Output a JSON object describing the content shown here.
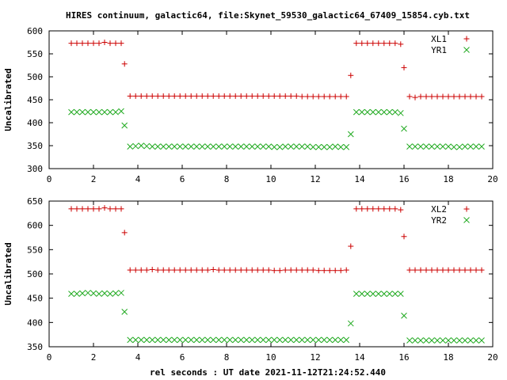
{
  "title": "HIRES continuum, galactic64, file:Skynet_59530_galactic64_67409_15854.cyb.txt",
  "xlabel": "rel seconds : UT date 2021-11-12T21:24:52.440",
  "colors": {
    "red_series": "#cc0000",
    "green_series": "#22aa22",
    "axis": "#000000"
  },
  "chart_data": [
    {
      "type": "scatter",
      "ylabel": "Uncalibrated",
      "xlim": [
        0,
        20
      ],
      "ylim": [
        300,
        600
      ],
      "xticks": [
        "0",
        "2",
        "4",
        "6",
        "8",
        "10",
        "12",
        "14",
        "16",
        "18",
        "20"
      ],
      "yticks": [
        "300",
        "350",
        "400",
        "450",
        "500",
        "550",
        "600"
      ],
      "legend_position": "top-right",
      "series": [
        {
          "name": "XL1",
          "marker": "plus",
          "color": "#cc0000",
          "x": [
            1.0,
            1.25,
            1.5,
            1.75,
            2.0,
            2.25,
            2.5,
            2.75,
            3.0,
            3.25,
            3.4,
            3.65,
            3.9,
            4.15,
            4.4,
            4.65,
            4.9,
            5.15,
            5.4,
            5.65,
            5.9,
            6.15,
            6.4,
            6.65,
            6.9,
            7.15,
            7.4,
            7.65,
            7.9,
            8.15,
            8.4,
            8.65,
            8.9,
            9.15,
            9.4,
            9.65,
            9.9,
            10.15,
            10.4,
            10.65,
            10.9,
            11.15,
            11.4,
            11.65,
            11.9,
            12.15,
            12.4,
            12.65,
            12.9,
            13.15,
            13.4,
            13.6,
            13.85,
            14.1,
            14.35,
            14.6,
            14.85,
            15.1,
            15.35,
            15.6,
            15.85,
            16.0,
            16.25,
            16.5,
            16.75,
            17.0,
            17.25,
            17.5,
            17.75,
            18.0,
            18.25,
            18.5,
            18.75,
            19.0,
            19.25,
            19.5
          ],
          "y": [
            573,
            573,
            573,
            573,
            573,
            573,
            575,
            573,
            573,
            573,
            528,
            458,
            458,
            458,
            458,
            458,
            458,
            458,
            458,
            458,
            458,
            458,
            458,
            458,
            458,
            458,
            458,
            458,
            458,
            458,
            458,
            458,
            458,
            458,
            458,
            458,
            458,
            458,
            458,
            458,
            458,
            458,
            457,
            457,
            457,
            457,
            457,
            457,
            457,
            457,
            457,
            503,
            573,
            573,
            573,
            573,
            573,
            573,
            573,
            573,
            571,
            520,
            457,
            455,
            457,
            457,
            457,
            457,
            457,
            457,
            457,
            457,
            457,
            457,
            457,
            457
          ]
        },
        {
          "name": "YR1",
          "marker": "cross",
          "color": "#22aa22",
          "x": [
            1.0,
            1.25,
            1.5,
            1.75,
            2.0,
            2.25,
            2.5,
            2.75,
            3.0,
            3.25,
            3.4,
            3.65,
            3.9,
            4.15,
            4.4,
            4.65,
            4.9,
            5.15,
            5.4,
            5.65,
            5.9,
            6.15,
            6.4,
            6.65,
            6.9,
            7.15,
            7.4,
            7.65,
            7.9,
            8.15,
            8.4,
            8.65,
            8.9,
            9.15,
            9.4,
            9.65,
            9.9,
            10.15,
            10.4,
            10.65,
            10.9,
            11.15,
            11.4,
            11.65,
            11.9,
            12.15,
            12.4,
            12.65,
            12.9,
            13.15,
            13.4,
            13.6,
            13.85,
            14.1,
            14.35,
            14.6,
            14.85,
            15.1,
            15.35,
            15.6,
            15.85,
            16.0,
            16.25,
            16.5,
            16.75,
            17.0,
            17.25,
            17.5,
            17.75,
            18.0,
            18.25,
            18.5,
            18.75,
            19.0,
            19.25,
            19.5
          ],
          "y": [
            423,
            423,
            423,
            423,
            423,
            423,
            423,
            423,
            423,
            425,
            394,
            348,
            349,
            350,
            349,
            348,
            348,
            348,
            348,
            348,
            348,
            348,
            348,
            348,
            348,
            348,
            348,
            348,
            348,
            348,
            348,
            348,
            348,
            348,
            348,
            348,
            348,
            347,
            347,
            348,
            348,
            348,
            348,
            348,
            347,
            347,
            347,
            347,
            348,
            347,
            347,
            375,
            423,
            423,
            423,
            423,
            423,
            423,
            423,
            423,
            421,
            387,
            348,
            348,
            348,
            348,
            348,
            348,
            348,
            348,
            347,
            347,
            348,
            348,
            348,
            348
          ]
        }
      ]
    },
    {
      "type": "scatter",
      "ylabel": "Uncalibrated",
      "xlim": [
        0,
        20
      ],
      "ylim": [
        350,
        650
      ],
      "xticks": [
        "0",
        "2",
        "4",
        "6",
        "8",
        "10",
        "12",
        "14",
        "16",
        "18",
        "20"
      ],
      "yticks": [
        "350",
        "400",
        "450",
        "500",
        "550",
        "600",
        "650"
      ],
      "legend_position": "top-right",
      "series": [
        {
          "name": "XL2",
          "marker": "plus",
          "color": "#cc0000",
          "x": [
            1.0,
            1.25,
            1.5,
            1.75,
            2.0,
            2.25,
            2.5,
            2.75,
            3.0,
            3.25,
            3.4,
            3.65,
            3.9,
            4.15,
            4.4,
            4.65,
            4.9,
            5.15,
            5.4,
            5.65,
            5.9,
            6.15,
            6.4,
            6.65,
            6.9,
            7.15,
            7.4,
            7.65,
            7.9,
            8.15,
            8.4,
            8.65,
            8.9,
            9.15,
            9.4,
            9.65,
            9.9,
            10.15,
            10.4,
            10.65,
            10.9,
            11.15,
            11.4,
            11.65,
            11.9,
            12.15,
            12.4,
            12.65,
            12.9,
            13.15,
            13.4,
            13.6,
            13.85,
            14.1,
            14.35,
            14.6,
            14.85,
            15.1,
            15.35,
            15.6,
            15.85,
            16.0,
            16.25,
            16.5,
            16.75,
            17.0,
            17.25,
            17.5,
            17.75,
            18.0,
            18.25,
            18.5,
            18.75,
            19.0,
            19.25,
            19.5
          ],
          "y": [
            634,
            634,
            634,
            634,
            634,
            634,
            636,
            634,
            634,
            634,
            585,
            508,
            508,
            508,
            508,
            509,
            508,
            508,
            508,
            508,
            508,
            508,
            508,
            508,
            508,
            508,
            509,
            508,
            508,
            508,
            508,
            508,
            508,
            508,
            508,
            508,
            508,
            507,
            507,
            508,
            508,
            508,
            508,
            508,
            508,
            507,
            507,
            507,
            507,
            507,
            508,
            557,
            634,
            634,
            634,
            634,
            634,
            634,
            634,
            634,
            632,
            577,
            508,
            508,
            508,
            508,
            508,
            508,
            508,
            508,
            508,
            508,
            508,
            508,
            508,
            508
          ]
        },
        {
          "name": "YR2",
          "marker": "cross",
          "color": "#22aa22",
          "x": [
            1.0,
            1.25,
            1.5,
            1.75,
            2.0,
            2.25,
            2.5,
            2.75,
            3.0,
            3.25,
            3.4,
            3.65,
            3.9,
            4.15,
            4.4,
            4.65,
            4.9,
            5.15,
            5.4,
            5.65,
            5.9,
            6.15,
            6.4,
            6.65,
            6.9,
            7.15,
            7.4,
            7.65,
            7.9,
            8.15,
            8.4,
            8.65,
            8.9,
            9.15,
            9.4,
            9.65,
            9.9,
            10.15,
            10.4,
            10.65,
            10.9,
            11.15,
            11.4,
            11.65,
            11.9,
            12.15,
            12.4,
            12.65,
            12.9,
            13.15,
            13.4,
            13.6,
            13.85,
            14.1,
            14.35,
            14.6,
            14.85,
            15.1,
            15.35,
            15.6,
            15.85,
            16.0,
            16.25,
            16.5,
            16.75,
            17.0,
            17.25,
            17.5,
            17.75,
            18.0,
            18.25,
            18.5,
            18.75,
            19.0,
            19.25,
            19.5
          ],
          "y": [
            459,
            459,
            460,
            461,
            460,
            459,
            460,
            459,
            460,
            461,
            422,
            364,
            364,
            364,
            364,
            364,
            364,
            364,
            364,
            364,
            364,
            364,
            364,
            364,
            364,
            364,
            364,
            364,
            364,
            364,
            364,
            364,
            364,
            364,
            364,
            364,
            364,
            364,
            364,
            364,
            364,
            364,
            364,
            364,
            364,
            364,
            364,
            364,
            364,
            364,
            364,
            398,
            459,
            459,
            459,
            459,
            459,
            459,
            459,
            459,
            459,
            414,
            363,
            363,
            363,
            363,
            363,
            363,
            363,
            363,
            363,
            363,
            363,
            363,
            363,
            363
          ]
        }
      ]
    }
  ]
}
